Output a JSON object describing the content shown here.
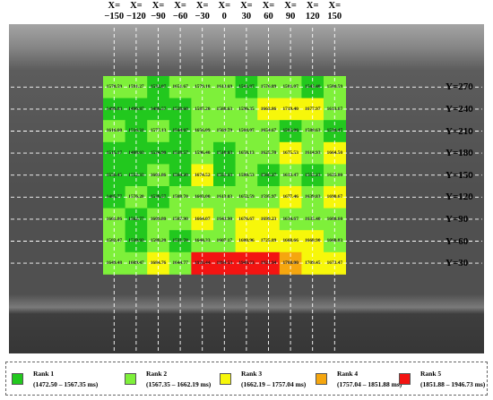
{
  "x_labels": [
    "X=\n−150",
    "X=\n−120",
    "X=\n−90",
    "X=\n−60",
    "X=\n−30",
    "X=\n0",
    "X=\n30",
    "X=\n60",
    "X=\n90",
    "X=\n120",
    "X=\n150"
  ],
  "y_labels": [
    "Y=270",
    "Y=240",
    "Y=210",
    "Y=180",
    "Y=150",
    "Y=120",
    "Y=90",
    "Y=60",
    "Y=30"
  ],
  "grid": [
    [
      "1578.59",
      "1591.27",
      "1532.07",
      "1651.67",
      "1579.18",
      "1613.69",
      "1541.87",
      "1576.89",
      "1581.07",
      "1545.40",
      "1580.59"
    ],
    [
      "1499.83",
      "1496.87",
      "1486.57",
      "1528.60",
      "1587.20",
      "1588.63",
      "1596.35",
      "1663.86",
      "1719.40",
      "1677.97",
      "1613.67"
    ],
    [
      "1616.60",
      "1516.31",
      "1577.13",
      "1544.07",
      "1656.09",
      "1569.79",
      "1568.07",
      "1654.67",
      "1565.00",
      "1588.63",
      "1538.47"
    ],
    [
      "1515.17",
      "1488.03",
      "1524.90",
      "1518.57",
      "1596.40",
      "1510.03",
      "1658.13",
      "1625.70",
      "1675.53",
      "1614.93",
      "1664.50"
    ],
    [
      "1556.45",
      "1552.33",
      "1601.86",
      "1564.20",
      "1674.52",
      "1551.13",
      "1580.53",
      "1566.27",
      "1613.47",
      "1555.23",
      "1625.00"
    ],
    [
      "1485.77",
      "1576.20",
      "1530.57",
      "1588.70",
      "1603.00",
      "1613.03",
      "1652.59",
      "1595.97",
      "1677.46",
      "1639.83",
      "1690.67"
    ],
    [
      "1661.86",
      "1562.77",
      "1609.80",
      "1587.90",
      "1664.07",
      "1643.90",
      "1676.67",
      "1699.23",
      "1634.67",
      "1635.40",
      "1608.60"
    ],
    [
      "1582.47",
      "1530.93",
      "1588.20",
      "1531.70",
      "1644.33",
      "1607.17",
      "1680.96",
      "1725.89",
      "1668.66",
      "1668.90",
      "1660.83"
    ],
    [
      "1649.48",
      "1609.47",
      "1684.76",
      "1644.77",
      "1920.44",
      "1894.53",
      "1948.73",
      "1921.94",
      "1768.00",
      "1709.45",
      "1673.47"
    ]
  ],
  "legend": [
    {
      "name": "Rank 1",
      "range": "(1472.50 – 1567.35 ms)",
      "color": "#22c81e"
    },
    {
      "name": "Rank 2",
      "range": "(1567.35 – 1662.19 ms)",
      "color": "#7ef03a"
    },
    {
      "name": "Rank 3",
      "range": "(1662.19 – 1757.04 ms)",
      "color": "#f7f70a"
    },
    {
      "name": "Rank 4",
      "range": "(1757.04 – 1851.88 ms)",
      "color": "#f5a60f"
    },
    {
      "name": "Rank 5",
      "range": "(1851.88 – 1946.73 ms)",
      "color": "#f31412"
    }
  ],
  "colors": {
    "rank1": "#22c81e",
    "rank2": "#7ef03a",
    "rank3": "#f7f70a",
    "rank4": "#f5a60f",
    "rank5": "#f31412",
    "panel": "#505050",
    "panel_top": "#9a9a9a"
  }
}
